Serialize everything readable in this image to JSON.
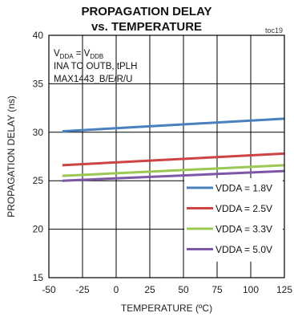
{
  "chart_data": {
    "type": "line",
    "title_line1": "PROPAGATION DELAY",
    "title_line2": "vs. TEMPERATURE",
    "tag": "toc19",
    "xlabel": "TEMPERATURE (ºC)",
    "ylabel": "PROPAGATION DELAY (ns)",
    "xlim": [
      -50,
      125
    ],
    "ylim": [
      15,
      40
    ],
    "xticks": [
      -50,
      -25,
      0,
      25,
      50,
      75,
      100,
      125
    ],
    "yticks": [
      15,
      20,
      25,
      30,
      35,
      40
    ],
    "grid": true,
    "legend_position": "bottom-right",
    "annotations": {
      "line1_main": "V",
      "line1_sub1": "DDA",
      "line1_eq": " = V",
      "line1_sub2": "DDB",
      "line2": "INA TO OUTB, tPLH",
      "line3": "MAX1443_B/E/R/U"
    },
    "x": [
      -40,
      125
    ],
    "series": [
      {
        "name": "VDDA = 1.8V",
        "color": "#4a80bd",
        "values": [
          30.1,
          31.4
        ]
      },
      {
        "name": "VDDA = 2.5V",
        "color": "#cc4444",
        "values": [
          26.6,
          27.8
        ]
      },
      {
        "name": "VDDA = 3.3V",
        "color": "#99c855",
        "values": [
          25.5,
          26.6
        ]
      },
      {
        "name": "VDDA = 5.0V",
        "color": "#7d56a6",
        "values": [
          25.0,
          26.0
        ]
      }
    ]
  }
}
